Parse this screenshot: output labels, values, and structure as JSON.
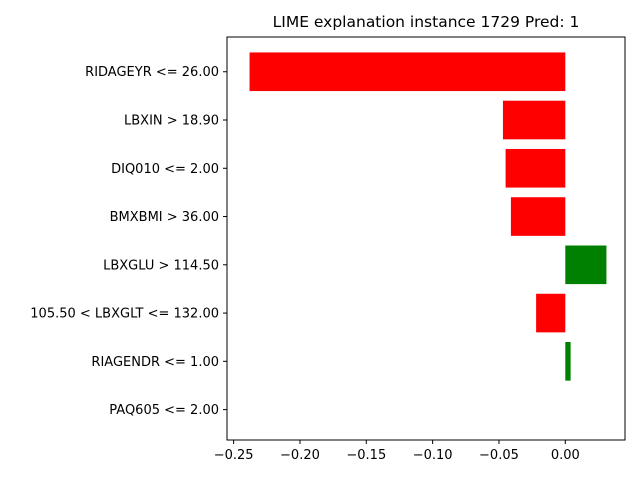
{
  "chart_data": {
    "type": "bar",
    "orientation": "horizontal",
    "title": "LIME explanation instance 1729 Pred: 1",
    "xlabel": "",
    "ylabel": "",
    "xlim": [
      -0.255,
      0.045
    ],
    "grid": false,
    "legend": "none",
    "positive_color": "#008000",
    "negative_color": "#ff0000",
    "x_ticks": [
      -0.25,
      -0.2,
      -0.15,
      -0.1,
      -0.05,
      0.0
    ],
    "x_tick_labels": [
      "−0.25",
      "−0.20",
      "−0.15",
      "−0.10",
      "−0.05",
      "0.00"
    ],
    "categories": [
      "RIDAGEYR <= 26.00",
      "LBXIN > 18.90",
      "DIQ010 <= 2.00",
      "BMXBMI > 36.00",
      "LBXGLU > 114.50",
      "105.50 < LBXGLT <= 132.00",
      "RIAGENDR <= 1.00",
      "PAQ605 <= 2.00"
    ],
    "values": [
      -0.238,
      -0.047,
      -0.045,
      -0.041,
      0.031,
      -0.022,
      0.004,
      0.0
    ]
  }
}
